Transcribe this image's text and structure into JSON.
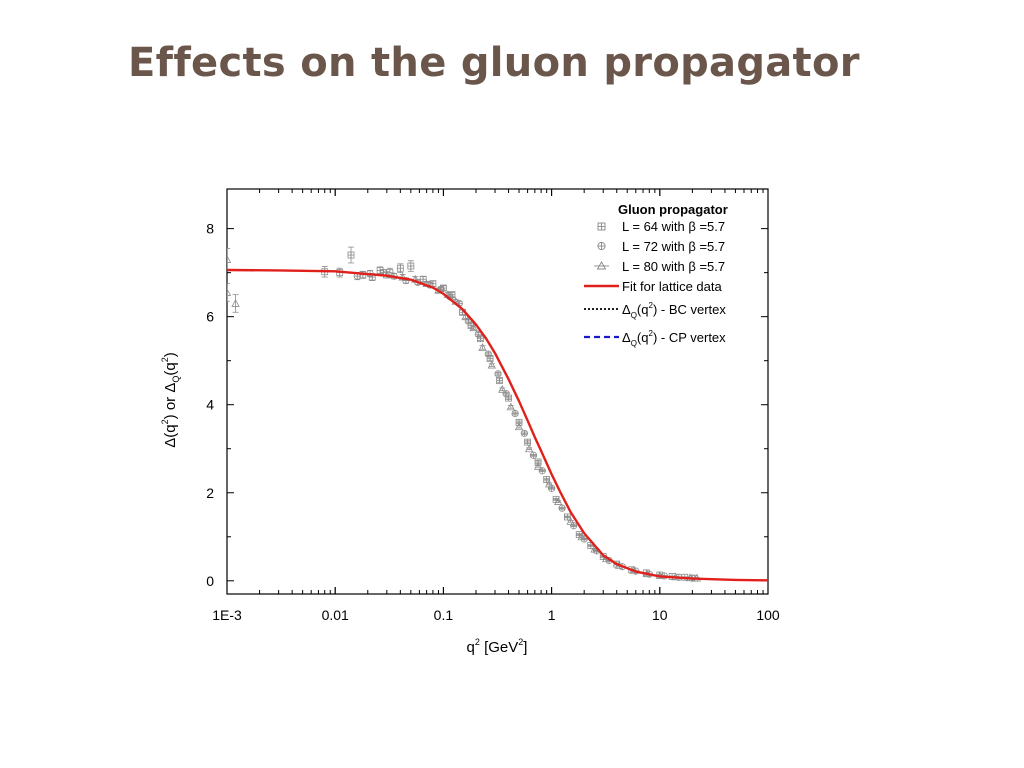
{
  "slide": {
    "title": "Effects on the gluon propagator"
  },
  "chart_data": {
    "type": "scatter",
    "xscale": "log",
    "xlim": [
      0.001,
      100
    ],
    "ylim": [
      -0.3,
      8.9
    ],
    "xlabel": {
      "base": "q",
      "sup": "2",
      "mid": " [GeV",
      "sup2": "2",
      "end": "]"
    },
    "ylabel": {
      "prefix": "Δ(q",
      "sup1": "2",
      "mid": ") or Δ",
      "sub": "Q",
      "mid2": "(q",
      "sup2": "2",
      "end": ")"
    },
    "x_ticks": [
      {
        "value": 0.001,
        "label": "1E-3"
      },
      {
        "value": 0.01,
        "label": "0.01"
      },
      {
        "value": 0.1,
        "label": "0.1"
      },
      {
        "value": 1,
        "label": "1"
      },
      {
        "value": 10,
        "label": "10"
      },
      {
        "value": 100,
        "label": "100"
      }
    ],
    "y_ticks": [
      {
        "value": 0,
        "label": "0"
      },
      {
        "value": 2,
        "label": "2"
      },
      {
        "value": 4,
        "label": "4"
      },
      {
        "value": 6,
        "label": "6"
      },
      {
        "value": 8,
        "label": "8"
      }
    ],
    "legend": {
      "title": "Gluon propagator",
      "position": "top-right",
      "entries": [
        {
          "label": "L = 64 with β =5.7",
          "marker": "square-plus"
        },
        {
          "label": "L = 72 with β =5.7",
          "marker": "circle-plus"
        },
        {
          "label": "L = 80 with β =5.7",
          "marker": "triangle"
        },
        {
          "label": "Fit for lattice data",
          "line": "solid",
          "color": "#e0201b"
        },
        {
          "label_pre": "Δ",
          "label_sub": "Q",
          "label_mid": "(q",
          "label_sup": "2",
          "label_end": ") - BC vertex",
          "line": "dotted",
          "color": "#000000"
        },
        {
          "label_pre": "Δ",
          "label_sub": "Q",
          "label_mid": "(q",
          "label_sup": "2",
          "label_end": ") - CP vertex",
          "line": "dashed",
          "color": "#1a1acc"
        }
      ]
    },
    "fit_curve": {
      "name": "Fit for lattice data",
      "color": "#e0201b",
      "x": [
        0.001,
        0.003,
        0.01,
        0.03,
        0.05,
        0.08,
        0.1,
        0.15,
        0.2,
        0.25,
        0.3,
        0.4,
        0.5,
        0.6,
        0.7,
        0.8,
        1.0,
        1.2,
        1.5,
        2.0,
        3.0,
        4.0,
        6.0,
        10,
        20,
        50,
        100
      ],
      "y": [
        7.06,
        7.05,
        7.03,
        6.93,
        6.84,
        6.66,
        6.52,
        6.17,
        5.82,
        5.49,
        5.17,
        4.58,
        4.08,
        3.64,
        3.26,
        2.95,
        2.42,
        2.02,
        1.56,
        1.08,
        0.58,
        0.38,
        0.21,
        0.1,
        0.05,
        0.02,
        0.01
      ]
    },
    "series": [
      {
        "name": "L = 64 with β =5.7",
        "marker": "square-plus",
        "x": [
          0.008,
          0.011,
          0.014,
          0.018,
          0.022,
          0.026,
          0.032,
          0.04,
          0.05,
          0.065,
          0.08,
          0.1,
          0.12,
          0.15,
          0.18,
          0.22,
          0.27,
          0.33,
          0.4,
          0.5,
          0.6,
          0.75,
          0.9,
          1.1,
          1.4,
          1.8,
          2.3,
          3.0,
          4.0,
          5.5,
          7.5,
          10,
          13,
          17,
          21
        ],
        "y": [
          7.02,
          7.0,
          7.4,
          6.95,
          6.9,
          7.05,
          7.0,
          7.1,
          7.15,
          6.85,
          6.75,
          6.65,
          6.5,
          6.1,
          5.8,
          5.5,
          5.05,
          4.55,
          4.15,
          3.6,
          3.15,
          2.7,
          2.3,
          1.85,
          1.45,
          1.05,
          0.8,
          0.55,
          0.38,
          0.25,
          0.18,
          0.13,
          0.1,
          0.08,
          0.06
        ],
        "err": [
          0.12,
          0.1,
          0.18,
          0.08,
          0.08,
          0.08,
          0.1,
          0.1,
          0.12,
          0.06,
          0.06,
          0.05,
          0.05,
          0.05,
          0.04,
          0.04,
          0.04,
          0.04,
          0.03,
          0.03,
          0.03,
          0.03,
          0.03,
          0.02,
          0.02,
          0.02,
          0.02,
          0.02,
          0.02,
          0.01,
          0.01,
          0.01,
          0.01,
          0.01,
          0.01
        ]
      },
      {
        "name": "L = 72 with β =5.7",
        "marker": "circle-plus",
        "x": [
          0.016,
          0.021,
          0.028,
          0.035,
          0.045,
          0.058,
          0.075,
          0.095,
          0.115,
          0.14,
          0.17,
          0.21,
          0.26,
          0.32,
          0.38,
          0.46,
          0.56,
          0.68,
          0.82,
          1.0,
          1.25,
          1.6,
          2.0,
          2.6,
          3.4,
          4.5,
          6.0,
          8.0,
          11,
          15,
          20
        ],
        "y": [
          6.92,
          6.98,
          7.0,
          6.92,
          6.82,
          6.78,
          6.72,
          6.62,
          6.45,
          6.3,
          5.9,
          5.6,
          5.15,
          4.7,
          4.25,
          3.8,
          3.35,
          2.85,
          2.5,
          2.1,
          1.65,
          1.25,
          0.95,
          0.68,
          0.46,
          0.32,
          0.22,
          0.15,
          0.11,
          0.08,
          0.06
        ],
        "err": [
          0.08,
          0.07,
          0.07,
          0.06,
          0.06,
          0.05,
          0.05,
          0.05,
          0.04,
          0.04,
          0.04,
          0.04,
          0.03,
          0.03,
          0.03,
          0.03,
          0.03,
          0.02,
          0.02,
          0.02,
          0.02,
          0.02,
          0.02,
          0.01,
          0.01,
          0.01,
          0.01,
          0.01,
          0.01,
          0.01,
          0.01
        ]
      },
      {
        "name": "L = 80 with β =5.7",
        "marker": "triangle",
        "x": [
          0.001,
          0.001,
          0.0012,
          0.03,
          0.042,
          0.055,
          0.07,
          0.09,
          0.11,
          0.13,
          0.16,
          0.19,
          0.23,
          0.28,
          0.35,
          0.42,
          0.5,
          0.62,
          0.75,
          0.95,
          1.15,
          1.5,
          1.9,
          2.5,
          3.2,
          4.2,
          5.7,
          7.6,
          10,
          14,
          19,
          22
        ],
        "y": [
          7.3,
          6.55,
          6.3,
          6.95,
          6.9,
          6.85,
          6.75,
          6.6,
          6.5,
          6.35,
          6.0,
          5.75,
          5.3,
          4.9,
          4.35,
          3.95,
          3.5,
          3.0,
          2.6,
          2.2,
          1.8,
          1.35,
          1.0,
          0.72,
          0.5,
          0.35,
          0.24,
          0.16,
          0.12,
          0.09,
          0.07,
          0.06
        ],
        "err": [
          0.25,
          0.2,
          0.2,
          0.07,
          0.06,
          0.06,
          0.05,
          0.05,
          0.05,
          0.04,
          0.04,
          0.04,
          0.04,
          0.03,
          0.03,
          0.03,
          0.03,
          0.02,
          0.02,
          0.02,
          0.02,
          0.02,
          0.02,
          0.01,
          0.01,
          0.01,
          0.01,
          0.01,
          0.01,
          0.01,
          0.01,
          0.01
        ]
      }
    ]
  }
}
